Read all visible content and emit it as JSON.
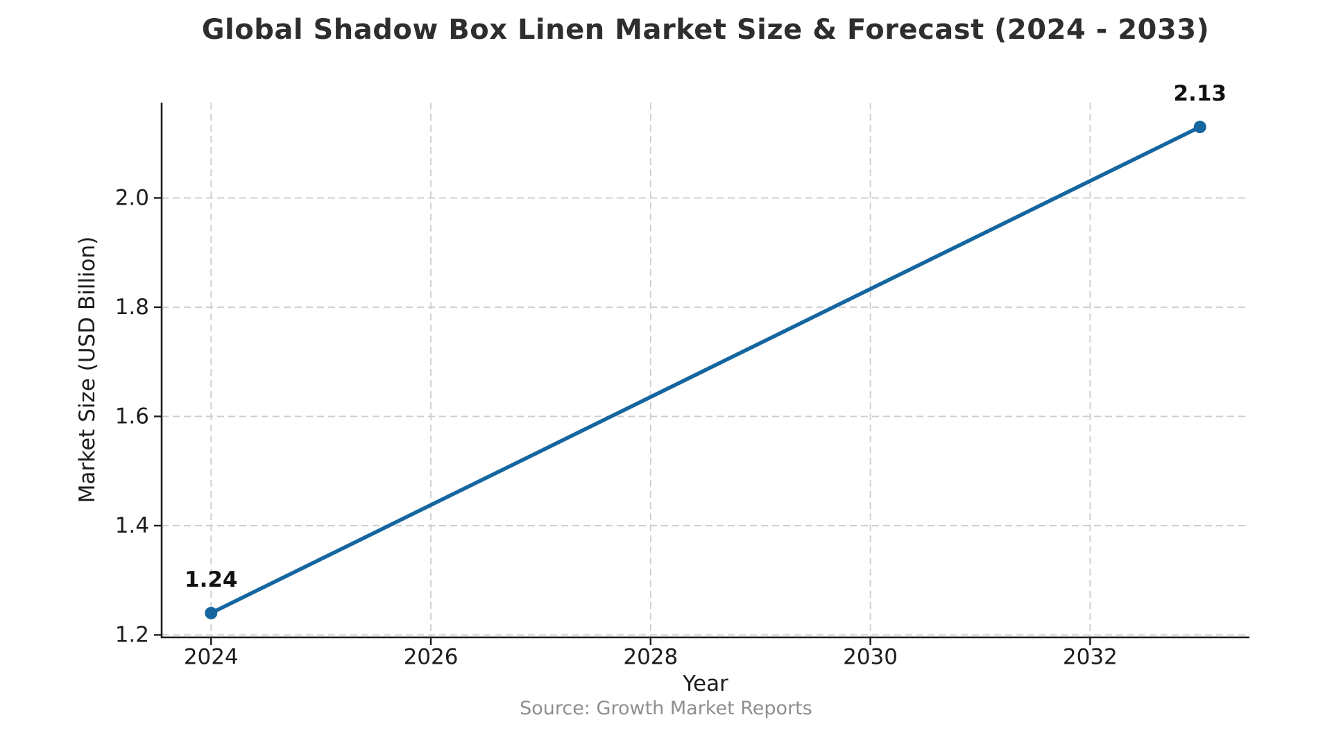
{
  "chart_data": {
    "type": "line",
    "title": "Global Shadow Box Linen Market Size & Forecast (2024 - 2033)",
    "xlabel": "Year",
    "ylabel": "Market Size (USD Billion)",
    "source": "Source: Growth Market Reports",
    "series": [
      {
        "name": "Market Size (USD Billion)",
        "x": [
          2024,
          2033
        ],
        "y": [
          1.24,
          2.13
        ]
      }
    ],
    "annotations": [
      {
        "x": 2024,
        "y": 1.24,
        "text": "1.24"
      },
      {
        "x": 2033,
        "y": 2.13,
        "text": "2.13"
      }
    ],
    "xticks": [
      "2024",
      "2026",
      "2028",
      "2030",
      "2032"
    ],
    "yticks": [
      "1.2",
      "1.4",
      "1.6",
      "1.8",
      "2.0"
    ],
    "xlim": [
      2023.55,
      2033.45
    ],
    "ylim": [
      1.1955,
      2.1745
    ],
    "grid": "both, dashed",
    "legend": "none",
    "colors": {
      "line": "#1566a0",
      "marker": "#1566a0",
      "grid": "#cdcdcd",
      "axis": "#1c1c1c",
      "tick_label": "#1c1c1c",
      "title": "#2e2e2e",
      "data_label": "#111111",
      "source": "#8e8e8e",
      "background": "#ffffff"
    }
  }
}
